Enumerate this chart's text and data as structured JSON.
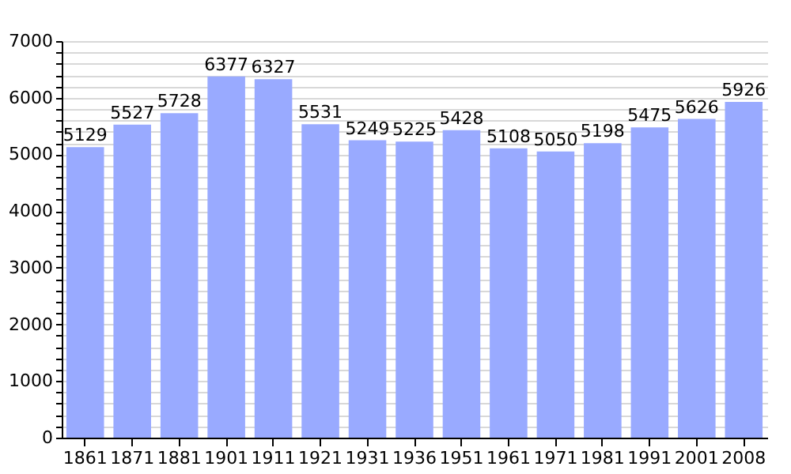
{
  "chart_data": {
    "type": "bar",
    "categories": [
      "1861",
      "1871",
      "1881",
      "1901",
      "1911",
      "1921",
      "1931",
      "1936",
      "1951",
      "1961",
      "1971",
      "1981",
      "1991",
      "2001",
      "2008"
    ],
    "values": [
      5129,
      5527,
      5728,
      6377,
      6327,
      5531,
      5249,
      5225,
      5428,
      5108,
      5050,
      5198,
      5475,
      5626,
      5926
    ],
    "color": "#99aaff",
    "ylim": [
      0,
      7000
    ],
    "yticks": [
      0,
      {
        "value": 200,
        "label": null
      },
      {
        "value": 400,
        "label": null
      },
      {
        "value": 600,
        "label": null
      },
      {
        "value": 800,
        "label": null
      },
      1000,
      {
        "value": 1200,
        "label": null
      },
      {
        "value": 1400,
        "label": null
      },
      {
        "value": 1600,
        "label": null
      },
      {
        "value": 1800,
        "label": null
      },
      2000,
      {
        "value": 2200,
        "label": null
      },
      {
        "value": 2400,
        "label": null
      },
      {
        "value": 2600,
        "label": null
      },
      {
        "value": 2800,
        "label": null
      },
      3000,
      {
        "value": 3200,
        "label": null
      },
      {
        "value": 3400,
        "label": null
      },
      {
        "value": 3600,
        "label": null
      },
      {
        "value": 3800,
        "label": null
      },
      4000,
      {
        "value": 4200,
        "label": null
      },
      {
        "value": 4400,
        "label": null
      },
      {
        "value": 4600,
        "label": null
      },
      {
        "value": 4800,
        "label": null
      },
      5000,
      {
        "value": 5200,
        "label": null
      },
      {
        "value": 5400,
        "label": null
      },
      {
        "value": 5600,
        "label": null
      },
      {
        "value": 5800,
        "label": null
      },
      6000,
      {
        "value": 6200,
        "label": null
      },
      {
        "value": 6400,
        "label": null
      },
      {
        "value": 6600,
        "label": null
      },
      {
        "value": 6800,
        "label": null
      },
      7000
    ],
    "grid": "y",
    "data_labels": true
  }
}
